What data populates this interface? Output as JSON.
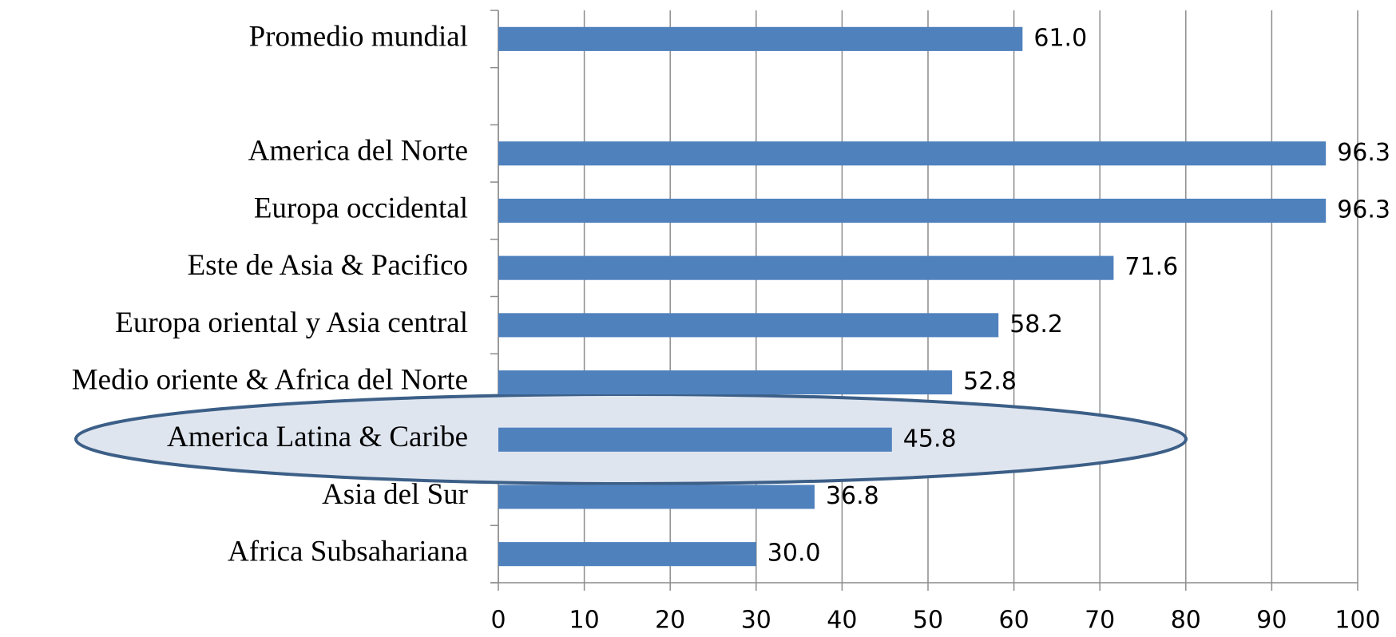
{
  "chart_data": {
    "type": "bar",
    "orientation": "horizontal",
    "categories": [
      "Promedio mundial",
      null,
      "America del Norte",
      "Europa occidental",
      "Este de Asia & Pacifico",
      "Europa oriental y Asia central",
      "Medio oriente & Africa del Norte",
      "America Latina & Caribe",
      "Asia del Sur",
      "Africa  Subsahariana"
    ],
    "values": [
      61.0,
      null,
      96.3,
      96.3,
      71.6,
      58.2,
      52.8,
      45.8,
      36.8,
      30.0
    ],
    "value_labels": [
      "61.0",
      null,
      "96.3",
      "96.3",
      "71.6",
      "58.2",
      "52.8",
      "45.8",
      "36.8",
      "30.0"
    ],
    "color": "#4f81bd",
    "xlim": [
      0,
      100
    ],
    "xticks": [
      0,
      10,
      20,
      30,
      40,
      50,
      60,
      70,
      80,
      90,
      100
    ],
    "grid": true
  }
}
